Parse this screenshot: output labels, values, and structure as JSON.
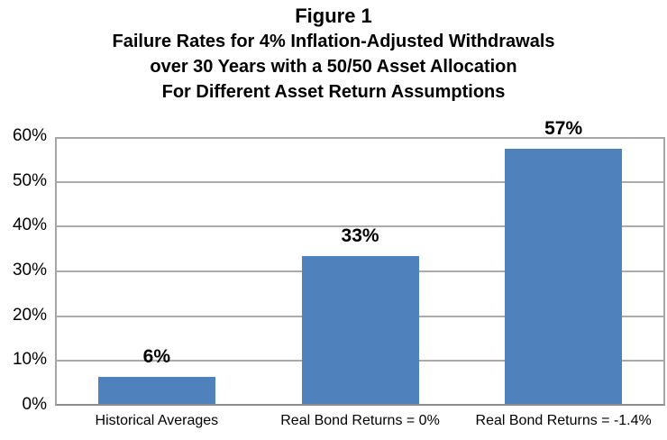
{
  "chart_data": {
    "type": "bar",
    "title_lines": [
      "Figure 1",
      "Failure Rates for 4% Inflation-Adjusted Withdrawals",
      "over 30 Years with a 50/50 Asset Allocation",
      "For Different Asset Return Assumptions"
    ],
    "categories": [
      "Historical Averages",
      "Real Bond Returns = 0%",
      "Real Bond Returns = -1.4%"
    ],
    "values": [
      6,
      33,
      57
    ],
    "data_labels": [
      "6%",
      "33%",
      "57%"
    ],
    "xlabel": "",
    "ylabel": "",
    "ylim": [
      0,
      60
    ],
    "ytick_step": 10,
    "ytick_labels": [
      "0%",
      "10%",
      "20%",
      "30%",
      "40%",
      "50%",
      "60%"
    ],
    "grid": true,
    "legend": false,
    "bar_color": "#4f81bd",
    "gridline_color": "#ababab",
    "axis_border_color": "#a6a6a6",
    "baseline_color": "#8c8c8c",
    "background": "#ffffff"
  }
}
